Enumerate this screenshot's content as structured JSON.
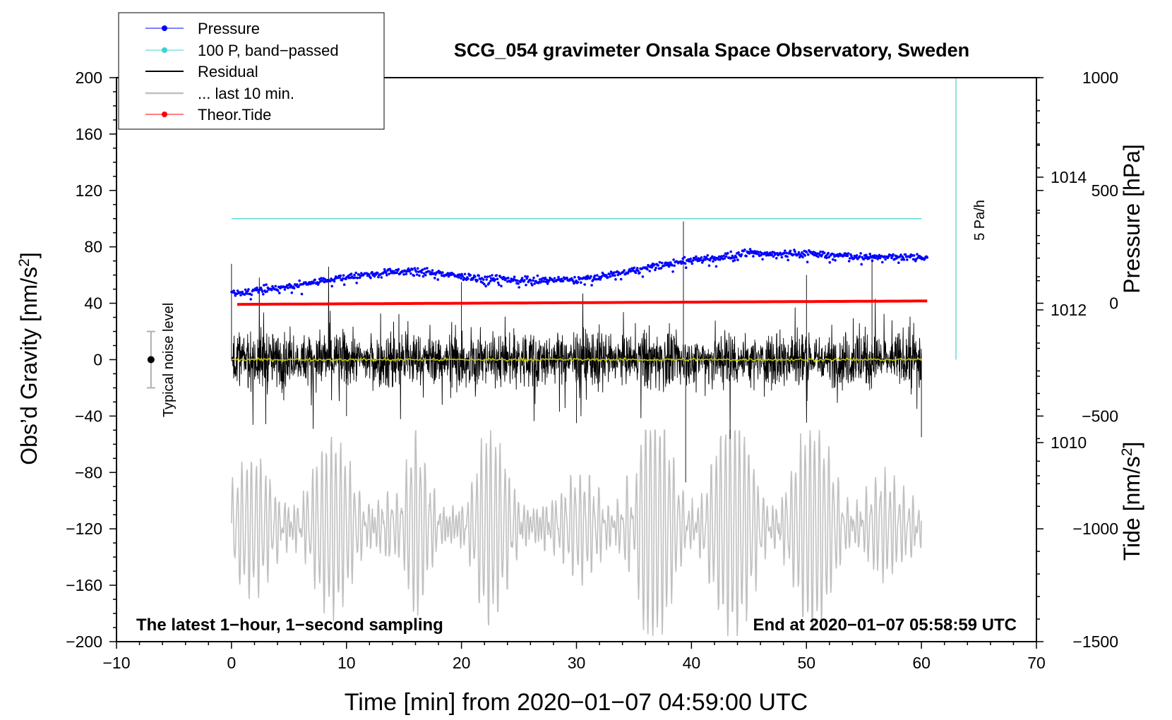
{
  "chart_data": {
    "type": "line",
    "title": "SCG_054 gravimeter Onsala Space Observatory, Sweden",
    "xlabel": "Time [min] from 2020−01−07 04:59:00 UTC",
    "ylabel_left": "Obs’d Gravity [nm/s²]",
    "ylabel_right_top": "Pressure [hPa]",
    "ylabel_right_bottom": "Tide [nm/s²]",
    "xlim": [
      -10,
      70
    ],
    "ylim": [
      -200,
      200
    ],
    "pressure_axis_range": [
      1007.0,
      1015.5
    ],
    "tide_axis_range": [
      -1500,
      1000
    ],
    "x_ticks": [
      {
        "value": -10,
        "label": "−10"
      },
      {
        "value": 0,
        "label": "0"
      },
      {
        "value": 10,
        "label": "10"
      },
      {
        "value": 20,
        "label": "20"
      },
      {
        "value": 30,
        "label": "30"
      },
      {
        "value": 40,
        "label": "40"
      },
      {
        "value": 50,
        "label": "50"
      },
      {
        "value": 60,
        "label": "60"
      },
      {
        "value": 70,
        "label": "70"
      }
    ],
    "y_left_ticks": [
      {
        "value": 200,
        "label": "200"
      },
      {
        "value": 160,
        "label": "160"
      },
      {
        "value": 120,
        "label": "120"
      },
      {
        "value": 80,
        "label": "80"
      },
      {
        "value": 40,
        "label": "40"
      },
      {
        "value": 0,
        "label": "0"
      },
      {
        "value": -40,
        "label": "−40"
      },
      {
        "value": -80,
        "label": "−80"
      },
      {
        "value": -120,
        "label": "−120"
      },
      {
        "value": -160,
        "label": "−160"
      },
      {
        "value": -200,
        "label": "−200"
      }
    ],
    "pressure_ticks": [
      {
        "value": 1014,
        "label": "1014"
      },
      {
        "value": 1012,
        "label": "1012"
      },
      {
        "value": 1010,
        "label": "1010"
      }
    ],
    "tide_ticks": [
      {
        "value": 1000,
        "label": "1000"
      },
      {
        "value": 500,
        "label": "500"
      },
      {
        "value": 0,
        "label": "0"
      },
      {
        "value": -500,
        "label": "−500"
      },
      {
        "value": -1000,
        "label": "−1000"
      },
      {
        "value": -1500,
        "label": "−1500"
      }
    ],
    "legend": {
      "position": "top-left",
      "entries": [
        {
          "label": "Pressure",
          "color": "#0000ff",
          "marker": true
        },
        {
          "label": "100 P, band−passed",
          "color": "#40d0d0",
          "marker": true
        },
        {
          "label": "Residual",
          "color": "#000000",
          "marker": false
        },
        {
          "label": "... last 10 min.",
          "color": "#c0c0c0",
          "marker": false
        },
        {
          "label": "Theor.Tide",
          "color": "#ff0000",
          "marker": true
        }
      ]
    },
    "annotations": {
      "bottom_left": "The latest 1−hour, 1−second sampling",
      "bottom_right": "End at 2020−01−07 05:58:59 UTC",
      "noise_label": "Typical noise level",
      "scale_bar_label": "5 Pa/h"
    },
    "noise_bar": {
      "x": -7,
      "center": 0,
      "low": -20,
      "high": 20
    },
    "scale_bar": {
      "x": 63,
      "y_from": 0,
      "y_to": 200
    },
    "series": [
      {
        "name": "Pressure",
        "unit": "hPa",
        "color": "#0000ff",
        "x": [
          0,
          5,
          10,
          16,
          20,
          25,
          30,
          35,
          40,
          45,
          50,
          55,
          60
        ],
        "values": [
          1012.25,
          1012.35,
          1012.5,
          1012.6,
          1012.5,
          1012.45,
          1012.45,
          1012.6,
          1012.75,
          1012.85,
          1012.85,
          1012.8,
          1012.8
        ]
      },
      {
        "name": "100 P, band−passed",
        "unit": "nm/s²",
        "color": "#40d0d0",
        "x": [
          0,
          60
        ],
        "values": [
          100,
          100
        ]
      },
      {
        "name": "Residual",
        "unit": "nm/s²",
        "color": "#000000",
        "description_values": {
          "min": -87,
          "max": 98,
          "typical_envelope": [
            -50,
            60
          ]
        },
        "x": [
          0,
          10,
          20,
          30,
          39.3,
          39.5,
          50,
          55.7,
          60
        ],
        "values": [
          68,
          -40,
          55,
          -45,
          98,
          -87,
          60,
          73,
          -55
        ]
      },
      {
        "name": "Residual smoothed",
        "unit": "nm/s²",
        "color": "#c8c800",
        "x": [
          0,
          60
        ],
        "values": [
          0,
          0
        ]
      },
      {
        "name": "... last 10 min.",
        "unit": "nm/s²",
        "color": "#c0c0c0",
        "x": [
          0,
          13,
          16,
          22,
          34.5,
          35.5,
          54,
          60
        ],
        "values": [
          -152,
          -178,
          -62,
          -180,
          -51,
          -193,
          -178,
          -110
        ]
      },
      {
        "name": "Theor.Tide",
        "unit": "nm/s² (tide axis)",
        "color": "#ff0000",
        "x": [
          0,
          20,
          40,
          60
        ],
        "values": [
          -5,
          0,
          5,
          10
        ]
      }
    ]
  }
}
